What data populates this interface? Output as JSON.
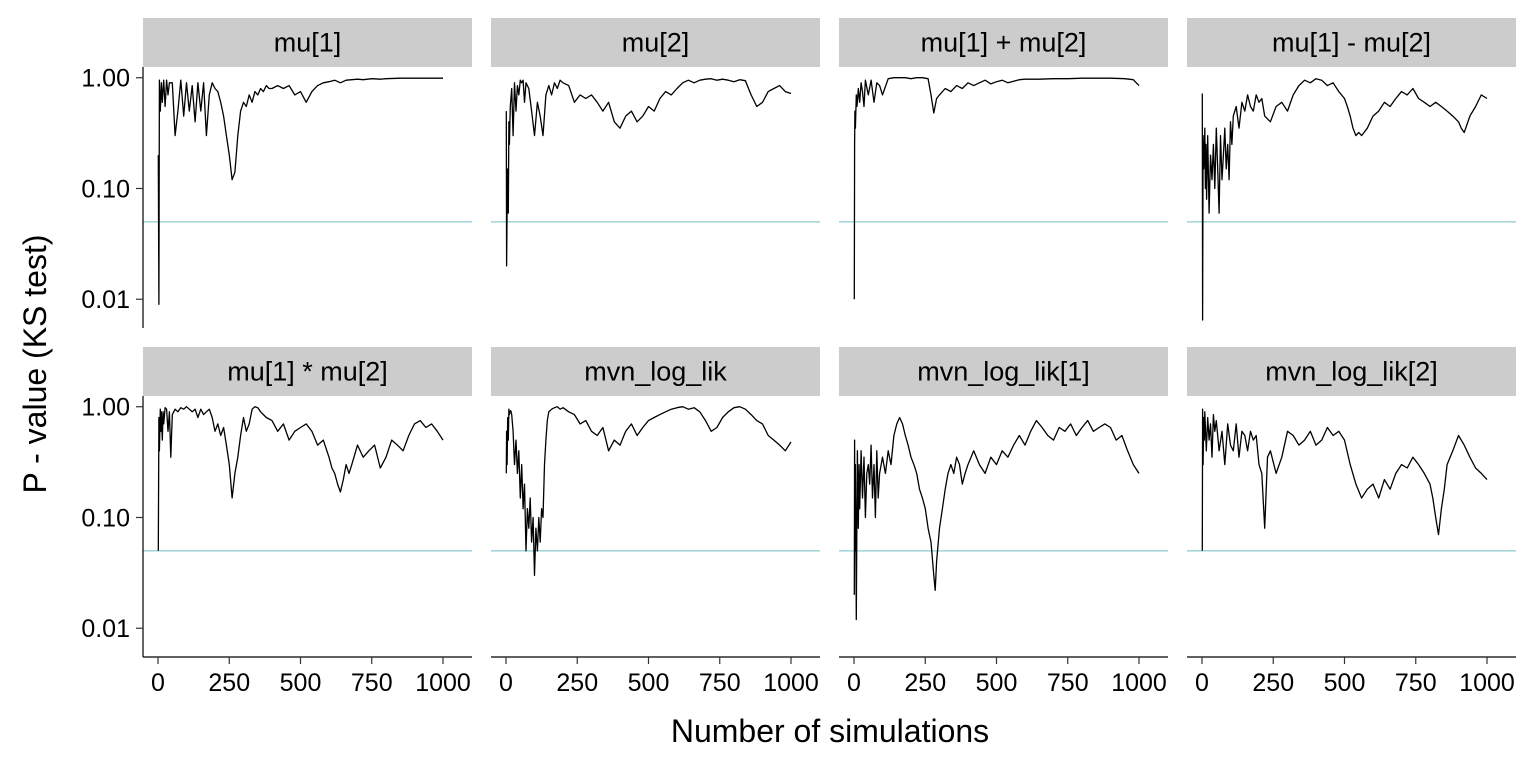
{
  "chart_data": {
    "type": "line",
    "layout": "facet grid, 2 rows x 4 columns, shared axes",
    "xlabel": "Number of simulations",
    "ylabel": "P - value (KS test)",
    "y_scale": "log10",
    "xlim": [
      0,
      1000
    ],
    "ylim": [
      0.0055,
      1.25
    ],
    "x_ticks": [
      0,
      250,
      500,
      750,
      1000
    ],
    "x_tick_labels": [
      "0",
      "250",
      "500",
      "750",
      "1000"
    ],
    "y_ticks": [
      0.01,
      0.1,
      1.0
    ],
    "y_tick_labels": [
      "0.01",
      "0.10",
      "1.00"
    ],
    "reference_line": {
      "y": 0.05,
      "color": "#a8d8dc"
    },
    "line_color": "#000000",
    "strip_color": "#cccccc",
    "grid": false,
    "legend": "none",
    "panels": [
      {
        "title": "mu[1]",
        "x": [
          1,
          3,
          5,
          8,
          12,
          15,
          20,
          25,
          30,
          35,
          40,
          50,
          60,
          70,
          80,
          90,
          100,
          110,
          120,
          130,
          140,
          150,
          160,
          170,
          180,
          190,
          200,
          210,
          220,
          230,
          240,
          250,
          260,
          270,
          280,
          290,
          300,
          310,
          320,
          330,
          340,
          350,
          360,
          370,
          380,
          390,
          400,
          420,
          440,
          460,
          480,
          500,
          520,
          540,
          560,
          580,
          600,
          620,
          640,
          660,
          680,
          700,
          720,
          750,
          780,
          800,
          850,
          900,
          950,
          1000
        ],
        "y": [
          0.2,
          0.009,
          0.95,
          0.5,
          0.9,
          0.6,
          0.95,
          0.55,
          0.95,
          0.7,
          0.9,
          0.9,
          0.3,
          0.5,
          0.95,
          0.45,
          0.9,
          0.5,
          0.85,
          0.4,
          0.9,
          0.5,
          0.9,
          0.3,
          0.7,
          0.9,
          0.8,
          0.75,
          0.6,
          0.45,
          0.3,
          0.2,
          0.12,
          0.14,
          0.3,
          0.5,
          0.6,
          0.55,
          0.7,
          0.6,
          0.75,
          0.7,
          0.8,
          0.75,
          0.85,
          0.8,
          0.8,
          0.85,
          0.8,
          0.85,
          0.7,
          0.75,
          0.6,
          0.75,
          0.85,
          0.9,
          0.92,
          0.95,
          0.9,
          0.95,
          0.96,
          0.97,
          0.96,
          0.98,
          0.97,
          0.98,
          0.99,
          0.99,
          0.99,
          0.99
        ]
      },
      {
        "title": "mu[2]",
        "x": [
          1,
          2,
          3,
          5,
          8,
          10,
          12,
          15,
          20,
          25,
          30,
          35,
          40,
          45,
          50,
          55,
          60,
          65,
          70,
          80,
          90,
          100,
          110,
          120,
          130,
          140,
          150,
          160,
          170,
          180,
          190,
          200,
          220,
          240,
          260,
          280,
          300,
          320,
          340,
          360,
          380,
          400,
          420,
          440,
          460,
          480,
          500,
          520,
          540,
          560,
          580,
          600,
          620,
          640,
          660,
          680,
          700,
          720,
          740,
          760,
          780,
          800,
          820,
          840,
          860,
          880,
          900,
          920,
          940,
          960,
          980,
          1000
        ],
        "y": [
          0.5,
          0.02,
          0.04,
          0.15,
          0.06,
          0.4,
          0.25,
          0.55,
          0.8,
          0.3,
          0.9,
          0.5,
          0.85,
          0.7,
          0.95,
          0.9,
          0.95,
          0.6,
          0.9,
          0.8,
          0.5,
          0.3,
          0.6,
          0.45,
          0.3,
          0.7,
          0.85,
          0.7,
          0.9,
          0.8,
          0.95,
          0.9,
          0.85,
          0.6,
          0.7,
          0.65,
          0.7,
          0.6,
          0.5,
          0.6,
          0.4,
          0.35,
          0.45,
          0.5,
          0.4,
          0.45,
          0.55,
          0.5,
          0.65,
          0.75,
          0.7,
          0.8,
          0.9,
          0.95,
          0.9,
          0.95,
          0.97,
          0.98,
          0.95,
          0.97,
          0.95,
          0.92,
          0.96,
          0.94,
          0.7,
          0.55,
          0.6,
          0.75,
          0.8,
          0.85,
          0.75,
          0.72
        ]
      },
      {
        "title": "mu[1] + mu[2]",
        "x": [
          1,
          2,
          3,
          5,
          8,
          10,
          12,
          15,
          20,
          25,
          30,
          35,
          40,
          50,
          60,
          70,
          80,
          90,
          100,
          120,
          140,
          160,
          180,
          200,
          220,
          240,
          260,
          270,
          280,
          290,
          300,
          320,
          340,
          360,
          380,
          400,
          420,
          440,
          460,
          480,
          500,
          520,
          540,
          560,
          580,
          600,
          650,
          700,
          750,
          800,
          850,
          900,
          950,
          980,
          1000
        ],
        "y": [
          0.01,
          0.25,
          0.5,
          0.35,
          0.7,
          0.55,
          0.6,
          0.8,
          0.6,
          0.9,
          0.75,
          0.55,
          0.95,
          0.7,
          0.95,
          0.6,
          0.9,
          0.85,
          0.7,
          0.98,
          1.0,
          1.0,
          1.0,
          0.98,
          1.0,
          1.0,
          0.98,
          0.7,
          0.48,
          0.65,
          0.7,
          0.8,
          0.75,
          0.85,
          0.8,
          0.9,
          0.85,
          0.9,
          0.95,
          0.88,
          0.92,
          0.95,
          0.9,
          0.93,
          0.96,
          0.97,
          0.97,
          0.98,
          0.98,
          0.99,
          0.99,
          0.99,
          0.98,
          0.96,
          0.85
        ]
      },
      {
        "title": "mu[1] - mu[2]",
        "x": [
          1,
          2,
          4,
          6,
          8,
          10,
          12,
          14,
          16,
          20,
          25,
          30,
          35,
          40,
          45,
          50,
          55,
          60,
          65,
          70,
          75,
          80,
          85,
          90,
          95,
          100,
          105,
          110,
          120,
          130,
          140,
          150,
          160,
          170,
          180,
          190,
          200,
          210,
          220,
          240,
          260,
          280,
          300,
          320,
          340,
          360,
          380,
          400,
          420,
          440,
          460,
          480,
          500,
          510,
          520,
          530,
          540,
          550,
          560,
          580,
          600,
          620,
          640,
          660,
          680,
          700,
          720,
          740,
          760,
          780,
          800,
          820,
          840,
          860,
          880,
          900,
          910,
          920,
          940,
          960,
          980,
          1000
        ],
        "y": [
          0.72,
          0.0065,
          0.3,
          0.15,
          0.2,
          0.35,
          0.1,
          0.25,
          0.08,
          0.3,
          0.06,
          0.2,
          0.12,
          0.25,
          0.1,
          0.35,
          0.15,
          0.06,
          0.3,
          0.12,
          0.2,
          0.35,
          0.15,
          0.25,
          0.12,
          0.4,
          0.25,
          0.45,
          0.55,
          0.35,
          0.6,
          0.5,
          0.7,
          0.55,
          0.5,
          0.7,
          0.6,
          0.65,
          0.45,
          0.4,
          0.55,
          0.6,
          0.5,
          0.7,
          0.85,
          0.95,
          0.9,
          0.98,
          0.95,
          0.85,
          0.9,
          0.75,
          0.65,
          0.55,
          0.45,
          0.35,
          0.3,
          0.32,
          0.3,
          0.35,
          0.45,
          0.5,
          0.6,
          0.55,
          0.65,
          0.75,
          0.7,
          0.8,
          0.65,
          0.6,
          0.55,
          0.6,
          0.55,
          0.5,
          0.45,
          0.4,
          0.35,
          0.32,
          0.45,
          0.55,
          0.7,
          0.65
        ]
      },
      {
        "title": "mu[1] * mu[2]",
        "x": [
          1,
          3,
          5,
          8,
          10,
          12,
          15,
          18,
          20,
          25,
          30,
          35,
          40,
          45,
          50,
          60,
          70,
          80,
          90,
          100,
          110,
          120,
          130,
          140,
          150,
          160,
          170,
          180,
          190,
          200,
          210,
          220,
          230,
          240,
          250,
          260,
          270,
          280,
          290,
          300,
          310,
          320,
          330,
          340,
          350,
          360,
          380,
          400,
          420,
          440,
          460,
          480,
          500,
          520,
          540,
          560,
          580,
          600,
          610,
          620,
          630,
          640,
          650,
          660,
          670,
          680,
          700,
          720,
          740,
          760,
          780,
          800,
          820,
          840,
          860,
          880,
          900,
          920,
          940,
          960,
          980,
          1000
        ],
        "y": [
          0.05,
          0.8,
          0.4,
          0.95,
          0.6,
          0.9,
          0.5,
          0.9,
          0.7,
          0.98,
          0.95,
          0.6,
          0.9,
          0.35,
          0.85,
          0.95,
          0.9,
          0.98,
          0.95,
          1.0,
          0.95,
          0.9,
          0.95,
          0.8,
          0.95,
          0.85,
          0.9,
          0.95,
          0.8,
          0.6,
          0.7,
          0.55,
          0.65,
          0.45,
          0.3,
          0.15,
          0.25,
          0.35,
          0.55,
          0.8,
          0.6,
          0.7,
          0.95,
          1.0,
          0.98,
          0.9,
          0.8,
          0.75,
          0.6,
          0.7,
          0.5,
          0.6,
          0.65,
          0.7,
          0.6,
          0.45,
          0.5,
          0.35,
          0.28,
          0.25,
          0.2,
          0.17,
          0.22,
          0.3,
          0.25,
          0.3,
          0.45,
          0.35,
          0.4,
          0.45,
          0.28,
          0.35,
          0.5,
          0.45,
          0.4,
          0.55,
          0.7,
          0.75,
          0.65,
          0.7,
          0.6,
          0.5
        ]
      },
      {
        "title": "mvn_log_lik",
        "x": [
          1,
          2,
          4,
          6,
          8,
          10,
          12,
          14,
          16,
          18,
          20,
          25,
          30,
          35,
          40,
          45,
          50,
          55,
          60,
          65,
          70,
          75,
          80,
          85,
          90,
          95,
          100,
          105,
          110,
          115,
          120,
          125,
          130,
          135,
          140,
          145,
          150,
          160,
          170,
          180,
          190,
          200,
          220,
          240,
          260,
          280,
          300,
          320,
          340,
          360,
          380,
          400,
          420,
          440,
          460,
          480,
          500,
          520,
          540,
          560,
          580,
          600,
          620,
          640,
          660,
          680,
          700,
          720,
          740,
          760,
          780,
          800,
          820,
          840,
          860,
          880,
          900,
          920,
          940,
          960,
          980,
          1000
        ],
        "y": [
          0.25,
          0.6,
          0.3,
          0.8,
          0.5,
          0.95,
          0.85,
          0.9,
          0.92,
          0.9,
          0.85,
          0.6,
          0.3,
          0.5,
          0.25,
          0.4,
          0.15,
          0.3,
          0.12,
          0.2,
          0.05,
          0.12,
          0.08,
          0.15,
          0.06,
          0.1,
          0.03,
          0.08,
          0.05,
          0.1,
          0.06,
          0.12,
          0.1,
          0.3,
          0.5,
          0.75,
          0.9,
          0.95,
          0.98,
          1.0,
          0.95,
          0.98,
          0.9,
          0.85,
          0.7,
          0.75,
          0.6,
          0.55,
          0.65,
          0.4,
          0.5,
          0.45,
          0.6,
          0.7,
          0.55,
          0.65,
          0.75,
          0.8,
          0.85,
          0.9,
          0.95,
          0.98,
          1.0,
          0.95,
          0.98,
          0.9,
          0.75,
          0.6,
          0.65,
          0.8,
          0.9,
          0.98,
          1.0,
          0.95,
          0.85,
          0.75,
          0.7,
          0.55,
          0.5,
          0.45,
          0.4,
          0.48
        ]
      },
      {
        "title": "mvn_log_lik[1]",
        "x": [
          1,
          2,
          3,
          5,
          8,
          10,
          12,
          15,
          18,
          20,
          25,
          30,
          35,
          40,
          45,
          50,
          55,
          60,
          65,
          70,
          75,
          80,
          85,
          90,
          100,
          110,
          120,
          130,
          140,
          150,
          160,
          170,
          180,
          190,
          200,
          210,
          220,
          230,
          240,
          250,
          260,
          270,
          280,
          285,
          290,
          300,
          310,
          320,
          330,
          340,
          350,
          360,
          370,
          380,
          390,
          400,
          420,
          440,
          460,
          480,
          500,
          520,
          540,
          560,
          580,
          600,
          620,
          640,
          660,
          680,
          700,
          720,
          740,
          760,
          780,
          800,
          820,
          840,
          860,
          880,
          900,
          920,
          940,
          960,
          980,
          1000
        ],
        "y": [
          0.02,
          0.5,
          0.05,
          0.3,
          0.012,
          0.1,
          0.4,
          0.08,
          0.3,
          0.12,
          0.4,
          0.15,
          0.35,
          0.1,
          0.25,
          0.3,
          0.2,
          0.45,
          0.15,
          0.3,
          0.1,
          0.4,
          0.15,
          0.25,
          0.35,
          0.25,
          0.4,
          0.3,
          0.55,
          0.7,
          0.8,
          0.7,
          0.55,
          0.45,
          0.35,
          0.3,
          0.25,
          0.18,
          0.15,
          0.12,
          0.08,
          0.06,
          0.03,
          0.022,
          0.04,
          0.08,
          0.12,
          0.18,
          0.25,
          0.3,
          0.25,
          0.35,
          0.3,
          0.2,
          0.25,
          0.3,
          0.4,
          0.3,
          0.25,
          0.35,
          0.3,
          0.4,
          0.35,
          0.45,
          0.55,
          0.45,
          0.6,
          0.75,
          0.65,
          0.55,
          0.5,
          0.65,
          0.6,
          0.7,
          0.55,
          0.65,
          0.75,
          0.6,
          0.65,
          0.7,
          0.65,
          0.5,
          0.55,
          0.4,
          0.3,
          0.25
        ]
      },
      {
        "title": "mvn_log_lik[2]",
        "x": [
          1,
          2,
          4,
          6,
          8,
          10,
          15,
          20,
          25,
          30,
          35,
          40,
          45,
          50,
          60,
          70,
          80,
          90,
          100,
          110,
          120,
          130,
          140,
          150,
          160,
          170,
          180,
          190,
          200,
          210,
          220,
          230,
          240,
          260,
          280,
          300,
          320,
          340,
          360,
          380,
          400,
          420,
          440,
          460,
          480,
          500,
          520,
          540,
          560,
          580,
          600,
          620,
          640,
          660,
          680,
          700,
          720,
          740,
          760,
          780,
          800,
          810,
          820,
          830,
          840,
          850,
          860,
          880,
          900,
          920,
          940,
          960,
          980,
          1000
        ],
        "y": [
          0.05,
          0.95,
          0.3,
          0.8,
          0.5,
          0.9,
          0.4,
          0.8,
          0.5,
          0.7,
          0.35,
          0.85,
          0.6,
          0.75,
          0.4,
          0.6,
          0.3,
          0.7,
          0.45,
          0.4,
          0.7,
          0.35,
          0.6,
          0.55,
          0.4,
          0.6,
          0.5,
          0.55,
          0.3,
          0.25,
          0.08,
          0.35,
          0.4,
          0.25,
          0.35,
          0.6,
          0.55,
          0.45,
          0.5,
          0.6,
          0.45,
          0.5,
          0.65,
          0.55,
          0.6,
          0.5,
          0.3,
          0.2,
          0.15,
          0.18,
          0.2,
          0.15,
          0.22,
          0.18,
          0.25,
          0.3,
          0.28,
          0.35,
          0.3,
          0.25,
          0.2,
          0.15,
          0.1,
          0.07,
          0.12,
          0.18,
          0.3,
          0.4,
          0.55,
          0.45,
          0.35,
          0.28,
          0.25,
          0.22
        ]
      }
    ]
  }
}
